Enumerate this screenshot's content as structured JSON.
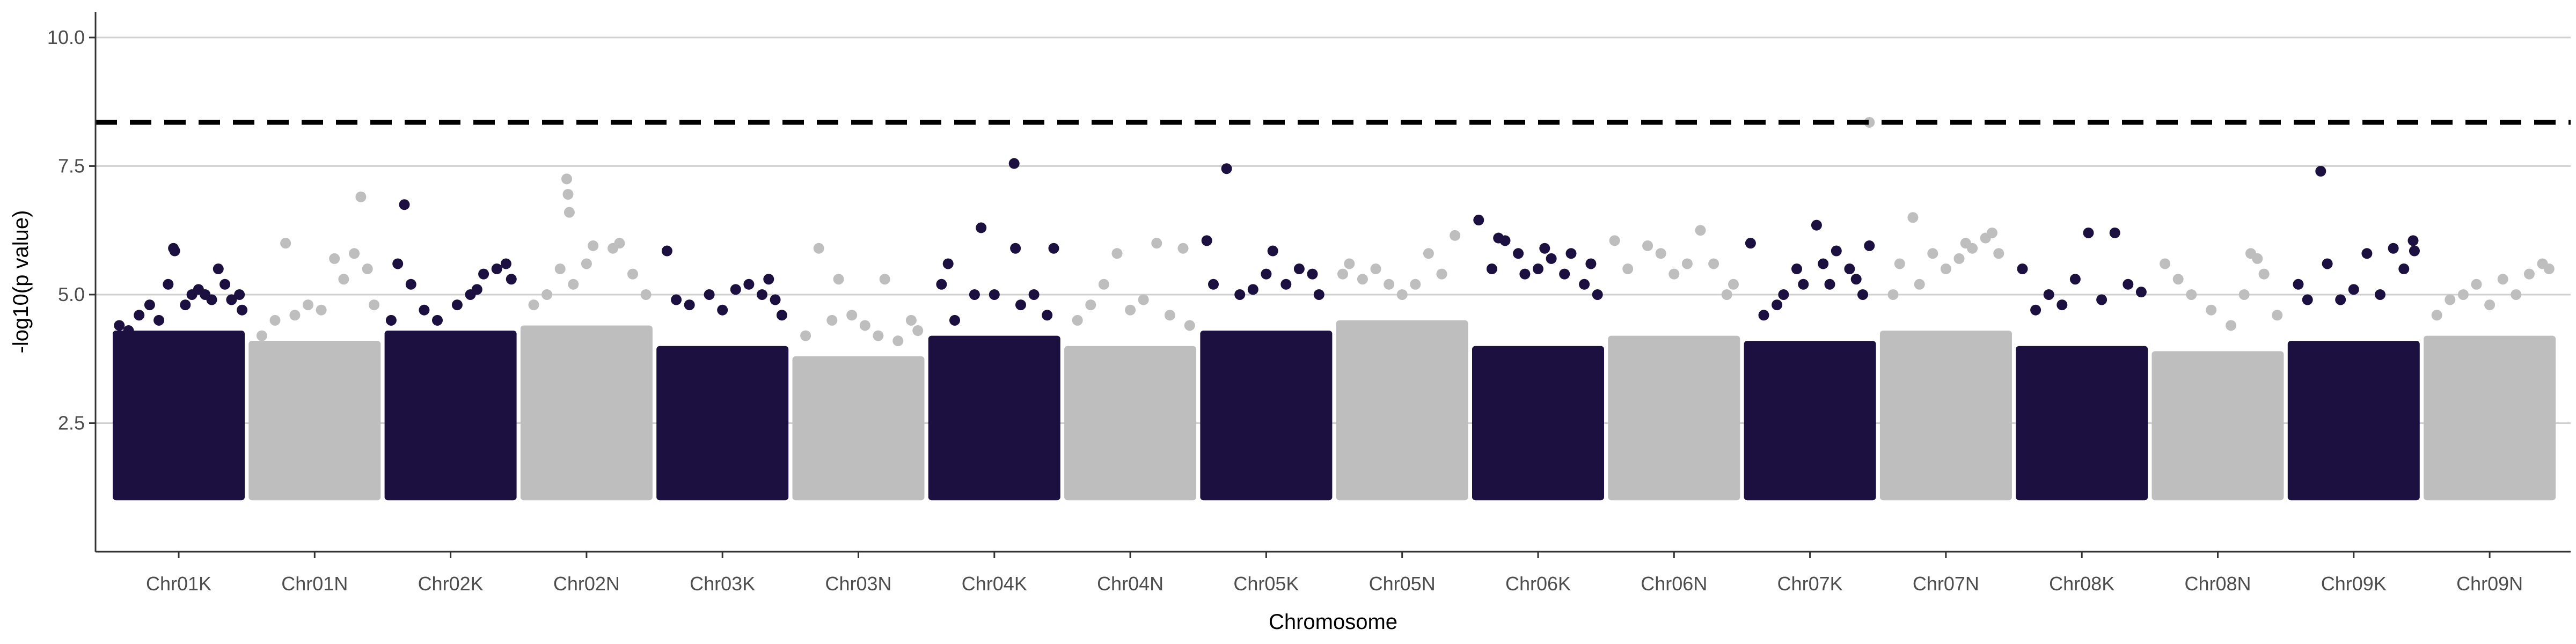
{
  "chart_data": {
    "type": "scatter",
    "title": "",
    "xlabel": "Chromosome",
    "ylabel": "-log10(p value)",
    "ylim": [
      0.0,
      10.5
    ],
    "yticks": [
      2.5,
      5.0,
      7.5,
      10.0
    ],
    "yticks_labels": [
      "2.5",
      "5.0",
      "7.5",
      "10.0"
    ],
    "grid": "horizontal major gridlines",
    "threshold": {
      "value": 8.35,
      "style": "dashed",
      "color": "#000000"
    },
    "colors": {
      "K": "#1b1040",
      "N": "#bebebe",
      "grid": "#d0d0d0",
      "axis": "#333333"
    },
    "categories": [
      "Chr01K",
      "Chr01N",
      "Chr02K",
      "Chr02N",
      "Chr03K",
      "Chr03N",
      "Chr04K",
      "Chr04N",
      "Chr05K",
      "Chr05N",
      "Chr06K",
      "Chr06N",
      "Chr07K",
      "Chr07N",
      "Chr08K",
      "Chr08N",
      "Chr09K",
      "Chr09N"
    ],
    "series": [
      {
        "chromosome": "Chr01K",
        "color_group": "K",
        "band_max": 4.3,
        "min_value": 1.0,
        "top_points": [
          [
            0.05,
            4.4
          ],
          [
            0.12,
            4.3
          ],
          [
            0.2,
            4.6
          ],
          [
            0.28,
            4.8
          ],
          [
            0.35,
            4.5
          ],
          [
            0.42,
            5.2
          ],
          [
            0.46,
            5.9
          ],
          [
            0.47,
            5.85
          ],
          [
            0.55,
            4.8
          ],
          [
            0.6,
            5.0
          ],
          [
            0.65,
            5.1
          ],
          [
            0.7,
            5.0
          ],
          [
            0.75,
            4.9
          ],
          [
            0.8,
            5.5
          ],
          [
            0.85,
            5.2
          ],
          [
            0.9,
            4.9
          ],
          [
            0.96,
            5.0
          ],
          [
            0.98,
            4.7
          ]
        ]
      },
      {
        "chromosome": "Chr01N",
        "color_group": "N",
        "band_max": 4.1,
        "min_value": 1.0,
        "top_points": [
          [
            0.1,
            4.2
          ],
          [
            0.2,
            4.5
          ],
          [
            0.28,
            6.0
          ],
          [
            0.35,
            4.6
          ],
          [
            0.45,
            4.8
          ],
          [
            0.55,
            4.7
          ],
          [
            0.65,
            5.7
          ],
          [
            0.72,
            5.3
          ],
          [
            0.8,
            5.8
          ],
          [
            0.85,
            6.9
          ],
          [
            0.9,
            5.5
          ],
          [
            0.95,
            4.8
          ]
        ]
      },
      {
        "chromosome": "Chr02K",
        "color_group": "K",
        "band_max": 4.3,
        "min_value": 1.0,
        "top_points": [
          [
            0.05,
            4.5
          ],
          [
            0.1,
            5.6
          ],
          [
            0.15,
            6.75
          ],
          [
            0.2,
            5.2
          ],
          [
            0.3,
            4.7
          ],
          [
            0.4,
            4.5
          ],
          [
            0.55,
            4.8
          ],
          [
            0.65,
            5.0
          ],
          [
            0.7,
            5.1
          ],
          [
            0.75,
            5.4
          ],
          [
            0.85,
            5.5
          ],
          [
            0.92,
            5.6
          ],
          [
            0.96,
            5.3
          ]
        ]
      },
      {
        "chromosome": "Chr02N",
        "color_group": "N",
        "band_max": 4.4,
        "min_value": 1.0,
        "top_points": [
          [
            0.1,
            4.8
          ],
          [
            0.2,
            5.0
          ],
          [
            0.3,
            5.5
          ],
          [
            0.35,
            7.25
          ],
          [
            0.36,
            6.95
          ],
          [
            0.37,
            6.6
          ],
          [
            0.4,
            5.2
          ],
          [
            0.5,
            5.6
          ],
          [
            0.55,
            5.95
          ],
          [
            0.7,
            5.9
          ],
          [
            0.75,
            6.0
          ],
          [
            0.85,
            5.4
          ],
          [
            0.95,
            5.0
          ]
        ]
      },
      {
        "chromosome": "Chr03K",
        "color_group": "K",
        "band_max": 4.0,
        "min_value": 1.0,
        "top_points": [
          [
            0.08,
            5.85
          ],
          [
            0.15,
            4.9
          ],
          [
            0.25,
            4.8
          ],
          [
            0.4,
            5.0
          ],
          [
            0.5,
            4.7
          ],
          [
            0.6,
            5.1
          ],
          [
            0.7,
            5.2
          ],
          [
            0.8,
            5.0
          ],
          [
            0.85,
            5.3
          ],
          [
            0.9,
            4.9
          ],
          [
            0.95,
            4.6
          ]
        ]
      },
      {
        "chromosome": "Chr03N",
        "color_group": "N",
        "band_max": 3.8,
        "min_value": 1.0,
        "top_points": [
          [
            0.1,
            4.2
          ],
          [
            0.2,
            5.9
          ],
          [
            0.3,
            4.5
          ],
          [
            0.35,
            5.3
          ],
          [
            0.45,
            4.6
          ],
          [
            0.55,
            4.4
          ],
          [
            0.65,
            4.2
          ],
          [
            0.7,
            5.3
          ],
          [
            0.8,
            4.1
          ],
          [
            0.9,
            4.5
          ],
          [
            0.95,
            4.3
          ]
        ]
      },
      {
        "chromosome": "Chr04K",
        "color_group": "K",
        "band_max": 4.2,
        "min_value": 1.0,
        "top_points": [
          [
            0.1,
            5.2
          ],
          [
            0.15,
            5.6
          ],
          [
            0.2,
            4.5
          ],
          [
            0.35,
            5.0
          ],
          [
            0.4,
            6.3
          ],
          [
            0.5,
            5.0
          ],
          [
            0.65,
            7.55
          ],
          [
            0.66,
            5.9
          ],
          [
            0.7,
            4.8
          ],
          [
            0.8,
            5.0
          ],
          [
            0.9,
            4.6
          ],
          [
            0.95,
            5.9
          ]
        ]
      },
      {
        "chromosome": "Chr04N",
        "color_group": "N",
        "band_max": 4.0,
        "min_value": 1.0,
        "top_points": [
          [
            0.1,
            4.5
          ],
          [
            0.2,
            4.8
          ],
          [
            0.3,
            5.2
          ],
          [
            0.4,
            5.8
          ],
          [
            0.5,
            4.7
          ],
          [
            0.6,
            4.9
          ],
          [
            0.7,
            6.0
          ],
          [
            0.8,
            4.6
          ],
          [
            0.9,
            5.9
          ],
          [
            0.95,
            4.4
          ]
        ]
      },
      {
        "chromosome": "Chr05K",
        "color_group": "K",
        "band_max": 4.3,
        "min_value": 1.0,
        "top_points": [
          [
            0.05,
            6.05
          ],
          [
            0.1,
            5.2
          ],
          [
            0.2,
            7.45
          ],
          [
            0.3,
            5.0
          ],
          [
            0.4,
            5.1
          ],
          [
            0.5,
            5.4
          ],
          [
            0.55,
            5.85
          ],
          [
            0.65,
            5.2
          ],
          [
            0.75,
            5.5
          ],
          [
            0.85,
            5.4
          ],
          [
            0.9,
            5.0
          ]
        ]
      },
      {
        "chromosome": "Chr05N",
        "color_group": "N",
        "band_max": 4.5,
        "min_value": 1.0,
        "top_points": [
          [
            0.05,
            5.4
          ],
          [
            0.1,
            5.6
          ],
          [
            0.2,
            5.3
          ],
          [
            0.3,
            5.5
          ],
          [
            0.4,
            5.2
          ],
          [
            0.5,
            5.0
          ],
          [
            0.6,
            5.2
          ],
          [
            0.7,
            5.8
          ],
          [
            0.8,
            5.4
          ],
          [
            0.9,
            6.15
          ]
        ]
      },
      {
        "chromosome": "Chr06K",
        "color_group": "K",
        "band_max": 4.0,
        "min_value": 1.0,
        "top_points": [
          [
            0.05,
            6.45
          ],
          [
            0.15,
            5.5
          ],
          [
            0.2,
            6.1
          ],
          [
            0.25,
            6.05
          ],
          [
            0.35,
            5.8
          ],
          [
            0.4,
            5.4
          ],
          [
            0.5,
            5.5
          ],
          [
            0.55,
            5.9
          ],
          [
            0.6,
            5.7
          ],
          [
            0.7,
            5.4
          ],
          [
            0.75,
            5.8
          ],
          [
            0.85,
            5.2
          ],
          [
            0.9,
            5.6
          ],
          [
            0.95,
            5.0
          ]
        ]
      },
      {
        "chromosome": "Chr06N",
        "color_group": "N",
        "band_max": 4.2,
        "min_value": 1.0,
        "top_points": [
          [
            0.05,
            6.05
          ],
          [
            0.15,
            5.5
          ],
          [
            0.3,
            5.95
          ],
          [
            0.4,
            5.8
          ],
          [
            0.5,
            5.4
          ],
          [
            0.6,
            5.6
          ],
          [
            0.7,
            6.25
          ],
          [
            0.8,
            5.6
          ],
          [
            0.9,
            5.0
          ],
          [
            0.95,
            5.2
          ]
        ]
      },
      {
        "chromosome": "Chr07K",
        "color_group": "K",
        "band_max": 4.1,
        "min_value": 1.0,
        "top_points": [
          [
            0.05,
            6.0
          ],
          [
            0.15,
            4.6
          ],
          [
            0.25,
            4.8
          ],
          [
            0.3,
            5.0
          ],
          [
            0.4,
            5.5
          ],
          [
            0.45,
            5.2
          ],
          [
            0.55,
            6.35
          ],
          [
            0.6,
            5.6
          ],
          [
            0.65,
            5.2
          ],
          [
            0.7,
            5.85
          ],
          [
            0.8,
            5.5
          ],
          [
            0.85,
            5.3
          ],
          [
            0.9,
            5.0
          ],
          [
            0.95,
            5.95
          ]
        ]
      },
      {
        "chromosome": "Chr07N",
        "color_group": "N",
        "band_max": 4.3,
        "min_value": 1.0,
        "top_points": [
          [
            0.1,
            5.0
          ],
          [
            0.15,
            5.6
          ],
          [
            0.25,
            6.5
          ],
          [
            0.3,
            5.2
          ],
          [
            0.4,
            5.8
          ],
          [
            0.5,
            5.5
          ],
          [
            0.6,
            5.7
          ],
          [
            0.65,
            6.0
          ],
          [
            0.7,
            5.9
          ],
          [
            0.8,
            6.1
          ],
          [
            0.85,
            6.2
          ],
          [
            0.9,
            5.8
          ]
        ]
      },
      {
        "chromosome": "Chr08K",
        "color_group": "K",
        "band_max": 4.0,
        "min_value": 1.0,
        "top_points": [
          [
            0.05,
            5.5
          ],
          [
            0.15,
            4.7
          ],
          [
            0.25,
            5.0
          ],
          [
            0.35,
            4.8
          ],
          [
            0.45,
            5.3
          ],
          [
            0.55,
            6.2
          ],
          [
            0.65,
            4.9
          ],
          [
            0.75,
            6.2
          ],
          [
            0.85,
            5.2
          ],
          [
            0.95,
            5.05
          ]
        ]
      },
      {
        "chromosome": "Chr08N",
        "color_group": "N",
        "band_max": 3.9,
        "min_value": 1.0,
        "top_points": [
          [
            0.1,
            5.6
          ],
          [
            0.2,
            5.3
          ],
          [
            0.3,
            5.0
          ],
          [
            0.45,
            4.7
          ],
          [
            0.6,
            4.4
          ],
          [
            0.7,
            5.0
          ],
          [
            0.75,
            5.8
          ],
          [
            0.8,
            5.7
          ],
          [
            0.85,
            5.4
          ],
          [
            0.95,
            4.6
          ]
        ]
      },
      {
        "chromosome": "Chr09K",
        "color_group": "K",
        "band_max": 4.1,
        "min_value": 1.0,
        "top_points": [
          [
            0.08,
            5.2
          ],
          [
            0.15,
            4.9
          ],
          [
            0.25,
            7.4
          ],
          [
            0.3,
            5.6
          ],
          [
            0.4,
            4.9
          ],
          [
            0.5,
            5.1
          ],
          [
            0.6,
            5.8
          ],
          [
            0.7,
            5.0
          ],
          [
            0.8,
            5.9
          ],
          [
            0.88,
            5.5
          ],
          [
            0.95,
            6.05
          ],
          [
            0.96,
            5.85
          ]
        ]
      },
      {
        "chromosome": "Chr09N",
        "color_group": "N",
        "band_max": 4.2,
        "min_value": 1.0,
        "top_points": [
          [
            0.1,
            4.6
          ],
          [
            0.2,
            4.9
          ],
          [
            0.3,
            5.0
          ],
          [
            0.4,
            5.2
          ],
          [
            0.5,
            4.8
          ],
          [
            0.6,
            5.3
          ],
          [
            0.7,
            5.0
          ],
          [
            0.8,
            5.4
          ],
          [
            0.9,
            5.6
          ],
          [
            0.95,
            5.5
          ]
        ]
      }
    ],
    "highlight_points": [
      {
        "chromosome": "Chr07K",
        "position": 0.95,
        "value": 8.35,
        "color": "#bebebe"
      }
    ],
    "legend": "none"
  }
}
